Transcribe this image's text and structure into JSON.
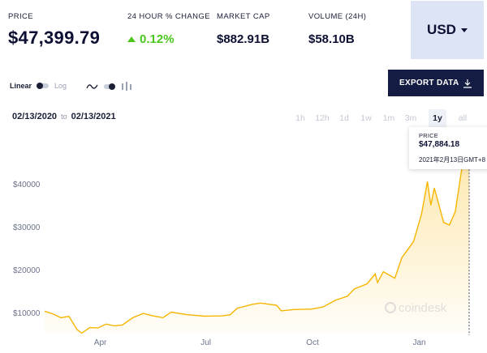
{
  "stats": {
    "price": {
      "label": "PRICE",
      "value": "$47,399.79"
    },
    "change": {
      "label": "24 HOUR % CHANGE",
      "value": "0.12%"
    },
    "market_cap": {
      "label": "MARKET CAP",
      "value": "$882.91B"
    },
    "volume": {
      "label": "VOLUME (24H)",
      "value": "$58.10B"
    }
  },
  "currency": {
    "selected": "USD"
  },
  "toolbar": {
    "scale_linear": "Linear",
    "scale_log": "Log",
    "export_label": "EXPORT DATA"
  },
  "date_range": {
    "from": "02/13/2020",
    "to_word": "to",
    "to": "02/13/2021"
  },
  "ranges": [
    "1h",
    "12h",
    "1d",
    "1w",
    "1m",
    "3m",
    "1y",
    "all"
  ],
  "active_range": "1y",
  "tooltip": {
    "label": "PRICE",
    "price": "$47,884.18",
    "date": "2021年2月13日GMT+8"
  },
  "watermark": "coindesk",
  "colors": {
    "line": "#f7b500",
    "accent_green": "#4ac61c",
    "export_bg": "#151c44",
    "currency_bg": "#dde4f6"
  },
  "chart_data": {
    "type": "area",
    "x_ticks": [
      "Apr",
      "Jul",
      "Oct",
      "Jan"
    ],
    "y_ticks": [
      "$10000",
      "$20000",
      "$30000",
      "$40000"
    ],
    "ylim": [
      0,
      50000
    ],
    "x_range": [
      "2020-02-13",
      "2021-02-13"
    ],
    "series": [
      {
        "points": [
          [
            "2020-02-13",
            10300
          ],
          [
            "2020-02-20",
            9700
          ],
          [
            "2020-02-27",
            8800
          ],
          [
            "2020-03-05",
            9100
          ],
          [
            "2020-03-12",
            6000
          ],
          [
            "2020-03-16",
            5200
          ],
          [
            "2020-03-23",
            6500
          ],
          [
            "2020-03-30",
            6400
          ],
          [
            "2020-04-06",
            7300
          ],
          [
            "2020-04-13",
            6900
          ],
          [
            "2020-04-20",
            7100
          ],
          [
            "2020-04-29",
            8800
          ],
          [
            "2020-05-08",
            9800
          ],
          [
            "2020-05-15",
            9300
          ],
          [
            "2020-05-25",
            8800
          ],
          [
            "2020-06-01",
            10100
          ],
          [
            "2020-06-15",
            9500
          ],
          [
            "2020-06-30",
            9150
          ],
          [
            "2020-07-15",
            9200
          ],
          [
            "2020-07-22",
            9500
          ],
          [
            "2020-07-28",
            11000
          ],
          [
            "2020-08-10",
            11900
          ],
          [
            "2020-08-17",
            12200
          ],
          [
            "2020-08-31",
            11700
          ],
          [
            "2020-09-04",
            10400
          ],
          [
            "2020-09-15",
            10700
          ],
          [
            "2020-09-30",
            10800
          ],
          [
            "2020-10-10",
            11300
          ],
          [
            "2020-10-21",
            12900
          ],
          [
            "2020-10-31",
            13800
          ],
          [
            "2020-11-06",
            15500
          ],
          [
            "2020-11-17",
            16700
          ],
          [
            "2020-11-24",
            19000
          ],
          [
            "2020-11-26",
            17000
          ],
          [
            "2020-12-01",
            19500
          ],
          [
            "2020-12-11",
            18000
          ],
          [
            "2020-12-17",
            22800
          ],
          [
            "2020-12-27",
            26500
          ],
          [
            "2021-01-03",
            33000
          ],
          [
            "2021-01-08",
            40500
          ],
          [
            "2021-01-11",
            35000
          ],
          [
            "2021-01-14",
            39000
          ],
          [
            "2021-01-22",
            31000
          ],
          [
            "2021-01-27",
            30400
          ],
          [
            "2021-02-01",
            33500
          ],
          [
            "2021-02-08",
            46000
          ],
          [
            "2021-02-11",
            47500
          ],
          [
            "2021-02-13",
            47884
          ]
        ]
      }
    ]
  }
}
